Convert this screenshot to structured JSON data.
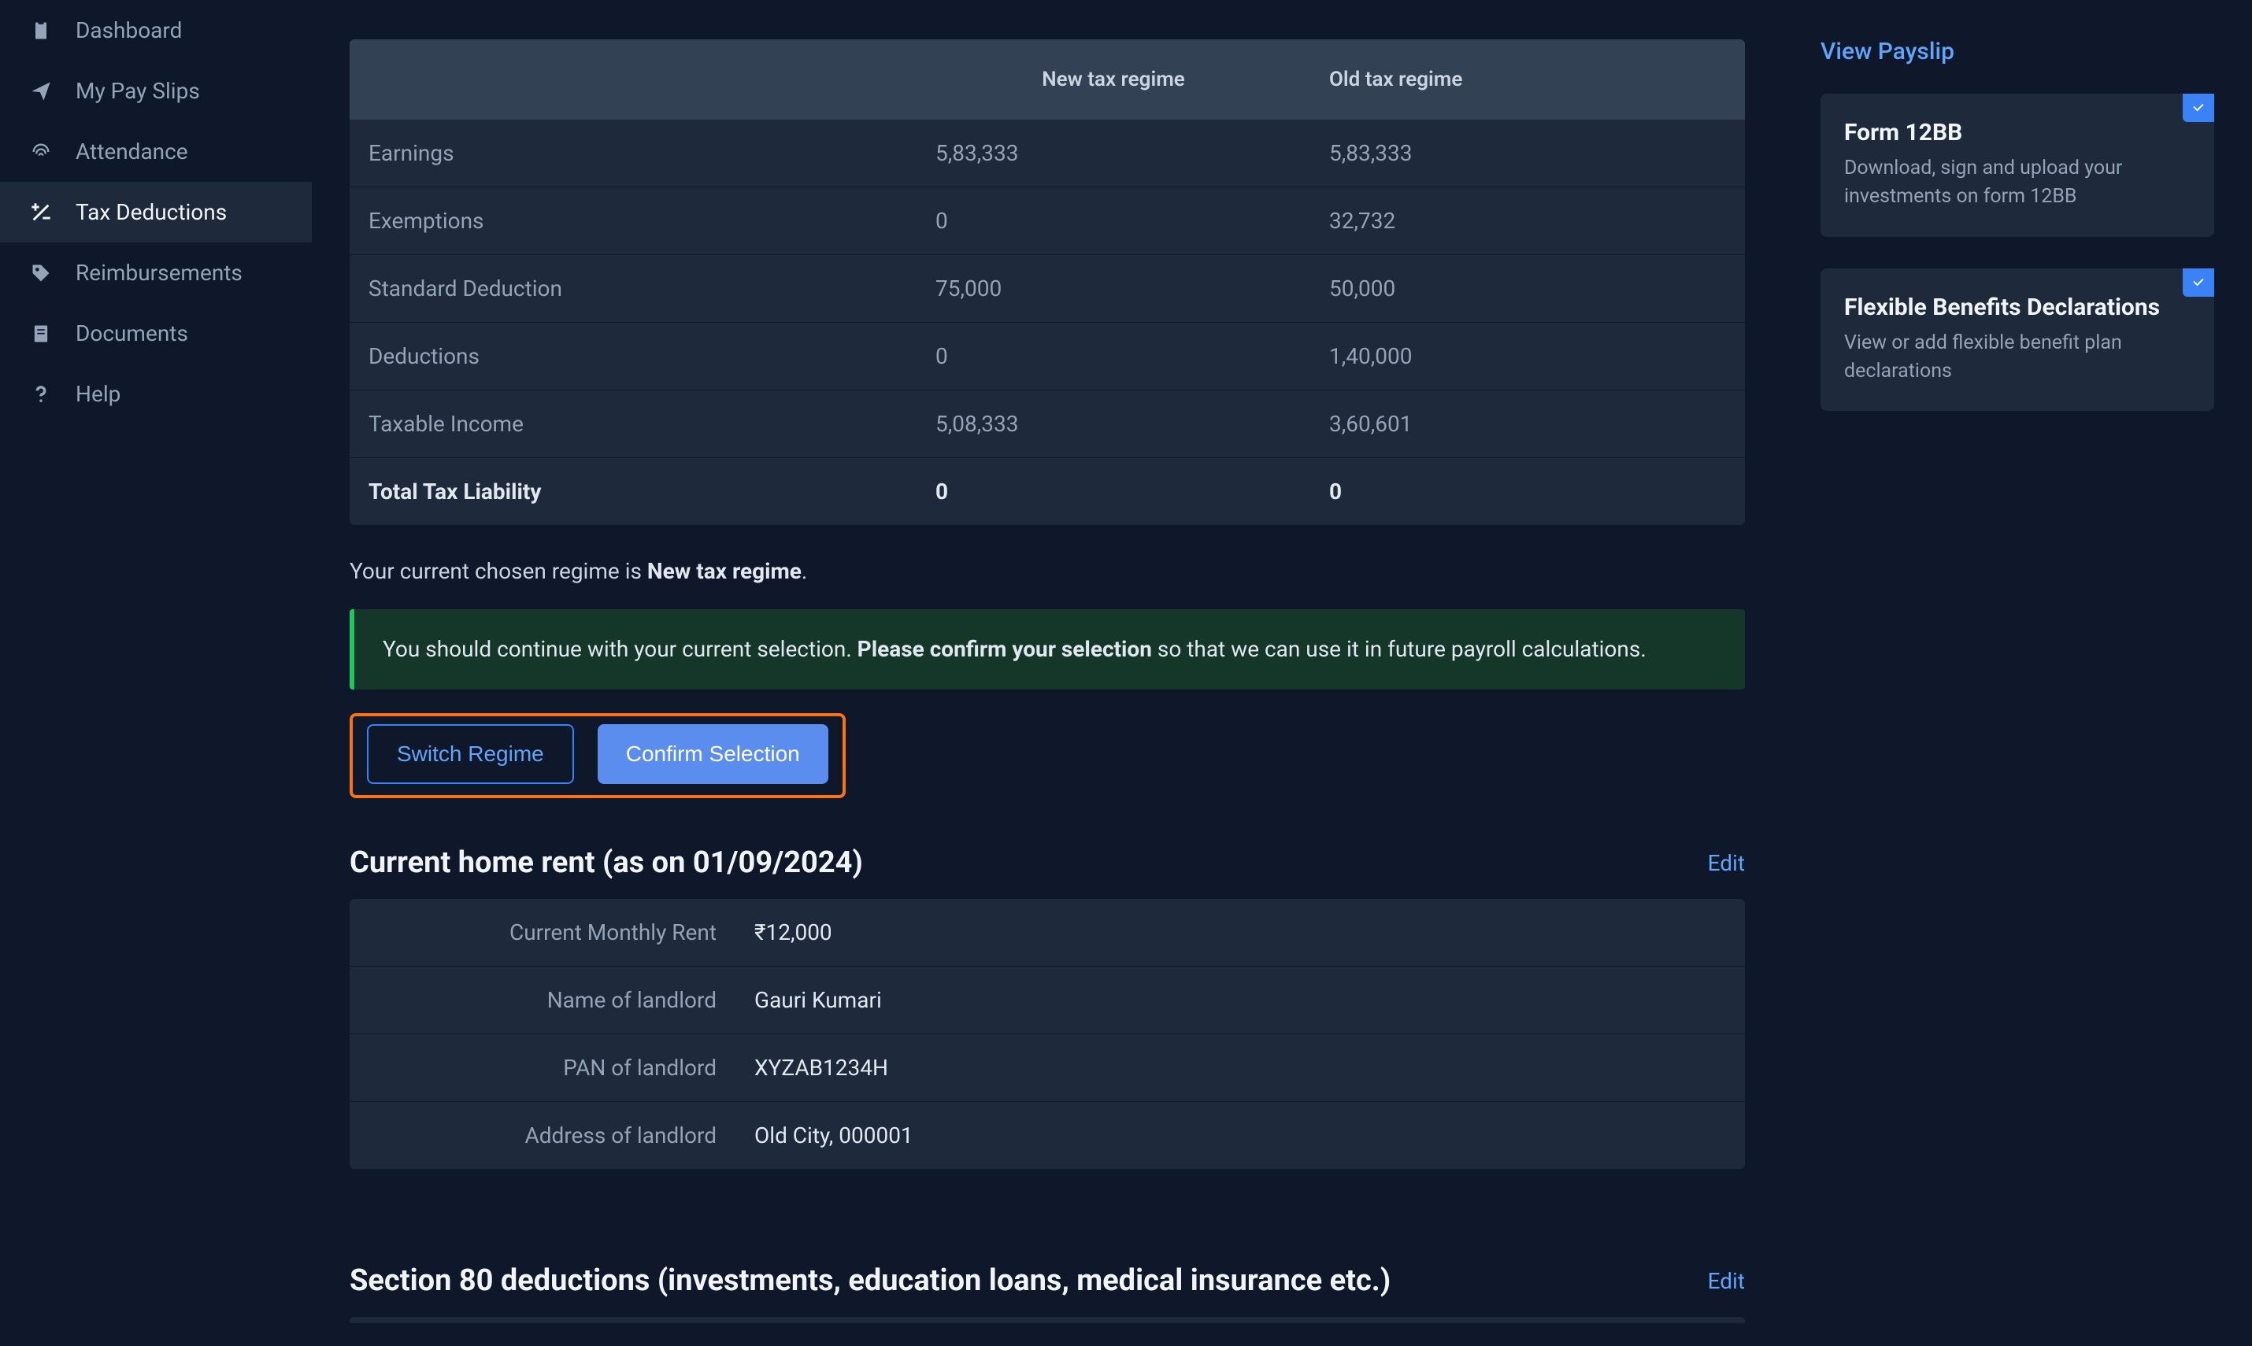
{
  "sidebar": {
    "items": [
      {
        "label": "Dashboard",
        "icon": "clipboard"
      },
      {
        "label": "My Pay Slips",
        "icon": "send"
      },
      {
        "label": "Attendance",
        "icon": "fingerprint"
      },
      {
        "label": "Tax Deductions",
        "icon": "plusminus"
      },
      {
        "label": "Reimbursements",
        "icon": "tag"
      },
      {
        "label": "Documents",
        "icon": "document"
      },
      {
        "label": "Help",
        "icon": "question"
      }
    ],
    "active_index": 3
  },
  "tax_table": {
    "headers": {
      "col1": "",
      "col2": "New tax regime",
      "col3": "Old tax regime"
    },
    "rows": [
      {
        "label": "Earnings",
        "new": "5,83,333",
        "old": "5,83,333",
        "bold": false
      },
      {
        "label": "Exemptions",
        "new": "0",
        "old": "32,732",
        "bold": false
      },
      {
        "label": "Standard Deduction",
        "new": "75,000",
        "old": "50,000",
        "bold": false
      },
      {
        "label": "Deductions",
        "new": "0",
        "old": "1,40,000",
        "bold": false
      },
      {
        "label": "Taxable Income",
        "new": "5,08,333",
        "old": "3,60,601",
        "bold": false
      },
      {
        "label": "Total Tax Liability",
        "new": "0",
        "old": "0",
        "bold": true
      }
    ]
  },
  "regime_line": {
    "prefix": "Your current chosen regime is ",
    "bold": "New tax regime",
    "suffix": "."
  },
  "alert": {
    "pre": "You should continue with your current selection. ",
    "bold": "Please confirm your selection",
    "post": " so that we can use it in future payroll calculations."
  },
  "buttons": {
    "switch": "Switch Regime",
    "confirm": "Confirm Selection"
  },
  "rent_section": {
    "title": "Current home rent (as on 01/09/2024)",
    "edit": "Edit",
    "rows": [
      {
        "label": "Current Monthly Rent",
        "value": "₹12,000"
      },
      {
        "label": "Name of landlord",
        "value": "Gauri Kumari"
      },
      {
        "label": "PAN of landlord",
        "value": "XYZAB1234H"
      },
      {
        "label": "Address of landlord",
        "value": "Old City, 000001"
      }
    ]
  },
  "section80": {
    "title": "Section 80 deductions (investments, education loans, medical insurance etc.)",
    "edit": "Edit"
  },
  "rightpanel": {
    "view_payslip": "View Payslip",
    "cards": [
      {
        "title": "Form 12BB",
        "sub": "Download, sign and upload your investments on form 12BB"
      },
      {
        "title": "Flexible Benefits Declarations",
        "sub": "View or add flexible benefit plan declarations"
      }
    ]
  },
  "colors": {
    "bg": "#0f172a",
    "panel": "#1e293b",
    "header_bg": "#334155",
    "text_muted": "#94a3b8",
    "text": "#e2e8f0",
    "accent": "#60a5fa",
    "primary": "#5b8def",
    "success_bg": "#14372a",
    "success_border": "#22c55e",
    "highlight_border": "#f97316",
    "badge_bg": "#3b82f6"
  }
}
